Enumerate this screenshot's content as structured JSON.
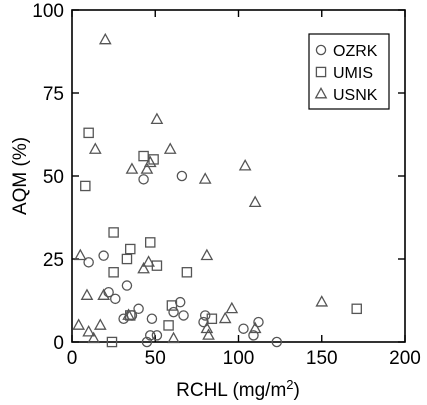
{
  "chart_data": {
    "type": "scatter",
    "title": "",
    "xlabel": "RCHL (mg/m",
    "xlabel_sup": "2",
    "xlabel_end": ")",
    "ylabel": "AQM (%)",
    "xlim": [
      0,
      200
    ],
    "ylim": [
      0,
      100
    ],
    "xticks": [
      0,
      50,
      100,
      150,
      200
    ],
    "yticks": [
      0,
      25,
      50,
      75,
      100
    ],
    "xtick_labels": [
      "0",
      "50",
      "100",
      "150",
      "200"
    ],
    "ytick_labels": [
      "0",
      "25",
      "50",
      "75",
      "100"
    ],
    "grid": false,
    "legend_position": "top-right",
    "series": [
      {
        "name": "OZRK",
        "marker": "circle",
        "points": [
          [
            10,
            24
          ],
          [
            19,
            26
          ],
          [
            22,
            15
          ],
          [
            26,
            13
          ],
          [
            31,
            7
          ],
          [
            33,
            17
          ],
          [
            36,
            8
          ],
          [
            40,
            10
          ],
          [
            43,
            49
          ],
          [
            45,
            0
          ],
          [
            47,
            2
          ],
          [
            48,
            7
          ],
          [
            51,
            2
          ],
          [
            61,
            9
          ],
          [
            66,
            50
          ],
          [
            65,
            12
          ],
          [
            67,
            8
          ],
          [
            79,
            6
          ],
          [
            80,
            8
          ],
          [
            103,
            4
          ],
          [
            109,
            2
          ],
          [
            112,
            6
          ],
          [
            123,
            0
          ]
        ]
      },
      {
        "name": "UMIS",
        "marker": "square",
        "points": [
          [
            8,
            47
          ],
          [
            10,
            63
          ],
          [
            24,
            0
          ],
          [
            25,
            33
          ],
          [
            25,
            21
          ],
          [
            33,
            25
          ],
          [
            35,
            28
          ],
          [
            35,
            8
          ],
          [
            43,
            56
          ],
          [
            47,
            30
          ],
          [
            49,
            55
          ],
          [
            51,
            23
          ],
          [
            58,
            5
          ],
          [
            60,
            11
          ],
          [
            69,
            21
          ],
          [
            84,
            7
          ],
          [
            171,
            10
          ]
        ]
      },
      {
        "name": "USNK",
        "marker": "triangle",
        "points": [
          [
            4,
            5
          ],
          [
            5,
            26
          ],
          [
            9,
            14
          ],
          [
            10,
            3
          ],
          [
            13,
            1
          ],
          [
            14,
            58
          ],
          [
            17,
            5
          ],
          [
            19,
            14
          ],
          [
            20,
            91
          ],
          [
            34,
            8
          ],
          [
            36,
            52
          ],
          [
            43,
            22
          ],
          [
            45,
            52
          ],
          [
            46,
            24
          ],
          [
            47,
            54
          ],
          [
            51,
            67
          ],
          [
            59,
            58
          ],
          [
            61,
            1
          ],
          [
            80,
            49
          ],
          [
            81,
            26
          ],
          [
            81,
            4
          ],
          [
            82,
            2
          ],
          [
            92,
            7
          ],
          [
            96,
            10
          ],
          [
            104,
            53
          ],
          [
            110,
            42
          ],
          [
            110,
            4
          ],
          [
            150,
            12
          ]
        ]
      }
    ]
  }
}
